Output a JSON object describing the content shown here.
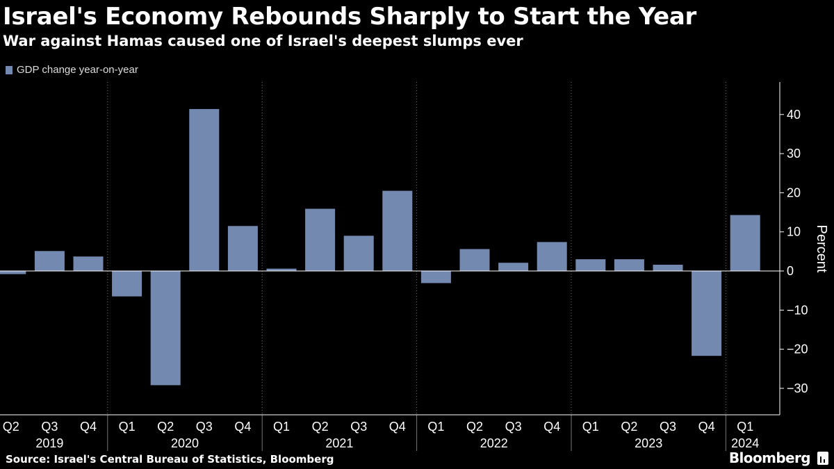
{
  "header": {
    "title": "Israel's Economy Rebounds Sharply to Start the Year",
    "subtitle": "War against Hamas caused one of Israel's deepest slumps ever"
  },
  "legend": {
    "label": "GDP change year-on-year"
  },
  "footer": {
    "source": "Source: Israel's Central Bureau of Statistics, Bloomberg",
    "brand": "Bloomberg"
  },
  "chart_data": {
    "type": "bar",
    "categories": [
      "Q2",
      "Q3",
      "Q4",
      "Q1",
      "Q2",
      "Q3",
      "Q4",
      "Q1",
      "Q2",
      "Q3",
      "Q4",
      "Q1",
      "Q2",
      "Q3",
      "Q4",
      "Q1",
      "Q2",
      "Q3",
      "Q4",
      "Q1"
    ],
    "years": [
      {
        "label": "2019",
        "quarters": 3
      },
      {
        "label": "2020",
        "quarters": 4
      },
      {
        "label": "2021",
        "quarters": 4
      },
      {
        "label": "2022",
        "quarters": 4
      },
      {
        "label": "2023",
        "quarters": 4
      },
      {
        "label": "2024",
        "quarters": 1
      }
    ],
    "series": [
      {
        "name": "GDP change year-on-year",
        "color": "#7489b0",
        "values": [
          -0.8,
          5.1,
          3.7,
          -6.5,
          -29.2,
          41.4,
          11.5,
          0.6,
          15.9,
          9.0,
          20.5,
          -3.1,
          5.6,
          2.1,
          7.4,
          3.0,
          3.0,
          1.6,
          -21.7,
          14.3
        ]
      }
    ],
    "ylabel": "Percent",
    "yticks": [
      40,
      30,
      20,
      10,
      0,
      -10,
      -20,
      -30
    ],
    "ylim": [
      -37,
      48
    ],
    "grid": "vertical dotted at year boundaries"
  }
}
